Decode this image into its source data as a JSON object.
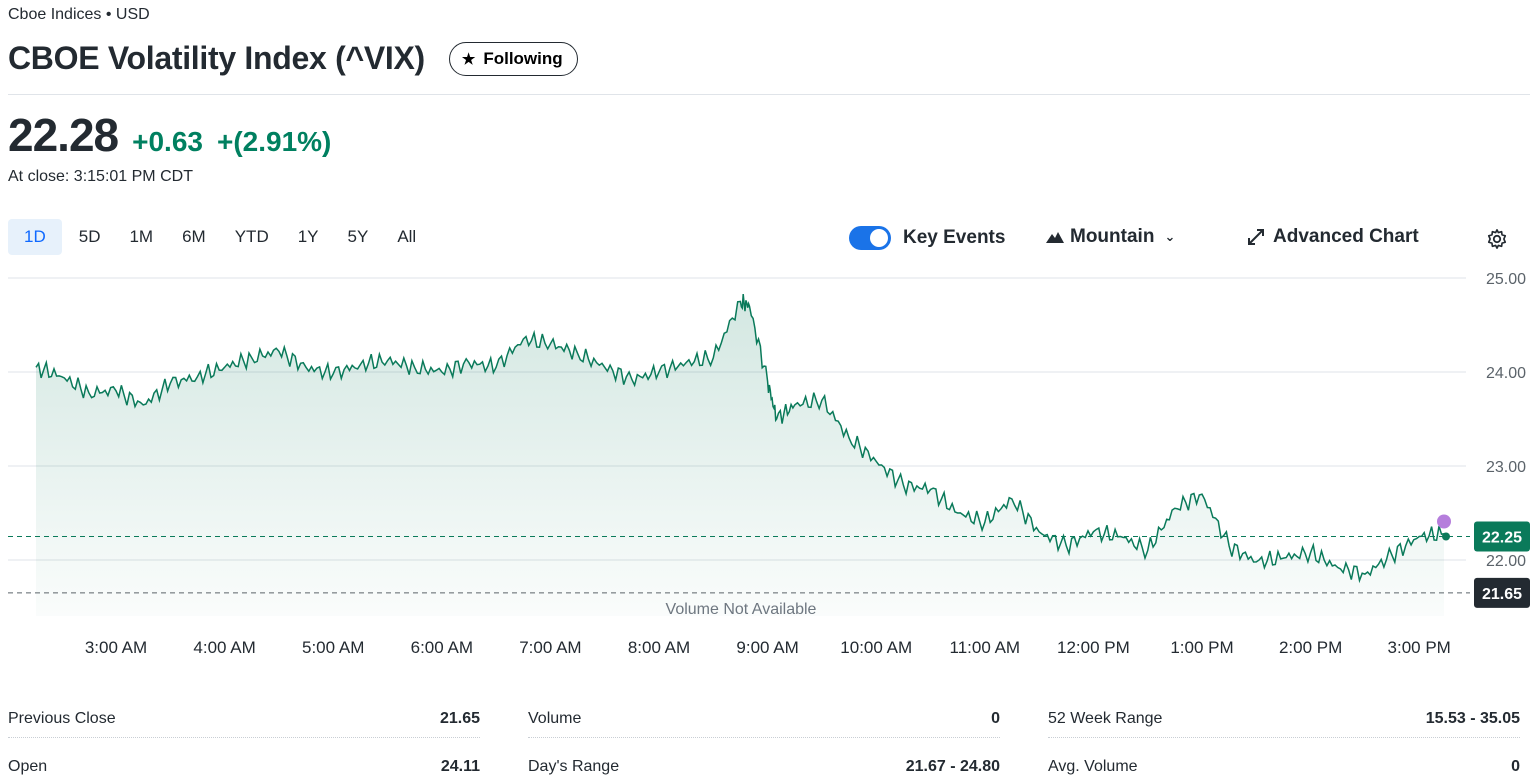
{
  "header": {
    "exchange": "Cboe Indices • USD",
    "title": "CBOE Volatility Index (^VIX)",
    "follow_label": "Following",
    "follow_icon": "star-icon"
  },
  "quote": {
    "price": "22.28",
    "change": "+0.63",
    "change_pct": "+(2.91%)",
    "close_time": "At close: 3:15:01 PM CDT",
    "change_color": "#008060"
  },
  "toolbar": {
    "ranges": [
      "1D",
      "5D",
      "1M",
      "6M",
      "YTD",
      "1Y",
      "5Y",
      "All"
    ],
    "active_range": "1D",
    "key_events_label": "Key Events",
    "key_events_on": true,
    "chart_type_label": "Mountain",
    "advanced_label": "Advanced Chart",
    "settings_icon": "gear-icon"
  },
  "chart_data": {
    "type": "area",
    "x_ticks": [
      "3:00 AM",
      "4:00 AM",
      "5:00 AM",
      "6:00 AM",
      "7:00 AM",
      "8:00 AM",
      "9:00 AM",
      "10:00 AM",
      "11:00 AM",
      "12:00 PM",
      "1:00 PM",
      "2:00 PM",
      "3:00 PM"
    ],
    "y_ticks": [
      "25.00",
      "24.00",
      "23.00",
      "22.00"
    ],
    "ylim": [
      21.55,
      25.0
    ],
    "x": [
      "2:15 AM",
      "2:30 AM",
      "2:45 AM",
      "3:00 AM",
      "3:15 AM",
      "3:30 AM",
      "3:45 AM",
      "4:00 AM",
      "4:15 AM",
      "4:30 AM",
      "4:45 AM",
      "5:00 AM",
      "5:15 AM",
      "5:30 AM",
      "5:45 AM",
      "6:00 AM",
      "6:15 AM",
      "6:30 AM",
      "6:45 AM",
      "7:00 AM",
      "7:15 AM",
      "7:30 AM",
      "7:45 AM",
      "8:00 AM",
      "8:15 AM",
      "8:30 AM",
      "8:45 AM",
      "8:50 AM",
      "9:00 AM",
      "9:05 AM",
      "9:15 AM",
      "9:30 AM",
      "9:45 AM",
      "10:00 AM",
      "10:15 AM",
      "10:30 AM",
      "10:45 AM",
      "11:00 AM",
      "11:15 AM",
      "11:30 AM",
      "11:45 AM",
      "12:00 PM",
      "12:15 PM",
      "12:30 PM",
      "12:45 PM",
      "1:00 PM",
      "1:15 PM",
      "1:30 PM",
      "1:45 PM",
      "2:00 PM",
      "2:15 PM",
      "2:30 PM",
      "2:45 PM",
      "3:00 PM",
      "3:15 PM"
    ],
    "values": [
      24.05,
      23.95,
      23.78,
      23.8,
      23.65,
      23.88,
      23.95,
      24.05,
      24.15,
      24.22,
      24.05,
      23.98,
      24.08,
      24.12,
      24.05,
      24.0,
      24.1,
      24.05,
      24.35,
      24.3,
      24.2,
      24.05,
      23.92,
      24.0,
      24.1,
      24.15,
      24.75,
      24.7,
      23.9,
      23.5,
      23.65,
      23.7,
      23.3,
      23.05,
      22.8,
      22.75,
      22.5,
      22.4,
      22.65,
      22.3,
      22.15,
      22.3,
      22.25,
      22.1,
      22.55,
      22.7,
      22.15,
      21.98,
      22.02,
      22.08,
      21.92,
      21.85,
      22.05,
      22.25,
      22.28
    ],
    "previous_close": "21.65",
    "last_marker": "22.25",
    "volume_note": "Volume Not Available",
    "line_color": "#0a7a5a",
    "event_marker_color": "#b57edc"
  },
  "stats": {
    "col1": [
      {
        "label": "Previous Close",
        "value": "21.65"
      },
      {
        "label": "Open",
        "value": "24.11"
      }
    ],
    "col2": [
      {
        "label": "Volume",
        "value": "0"
      },
      {
        "label": "Day's Range",
        "value": "21.67 - 24.80"
      }
    ],
    "col3": [
      {
        "label": "52 Week Range",
        "value": "15.53 - 35.05"
      },
      {
        "label": "Avg. Volume",
        "value": "0"
      }
    ]
  }
}
